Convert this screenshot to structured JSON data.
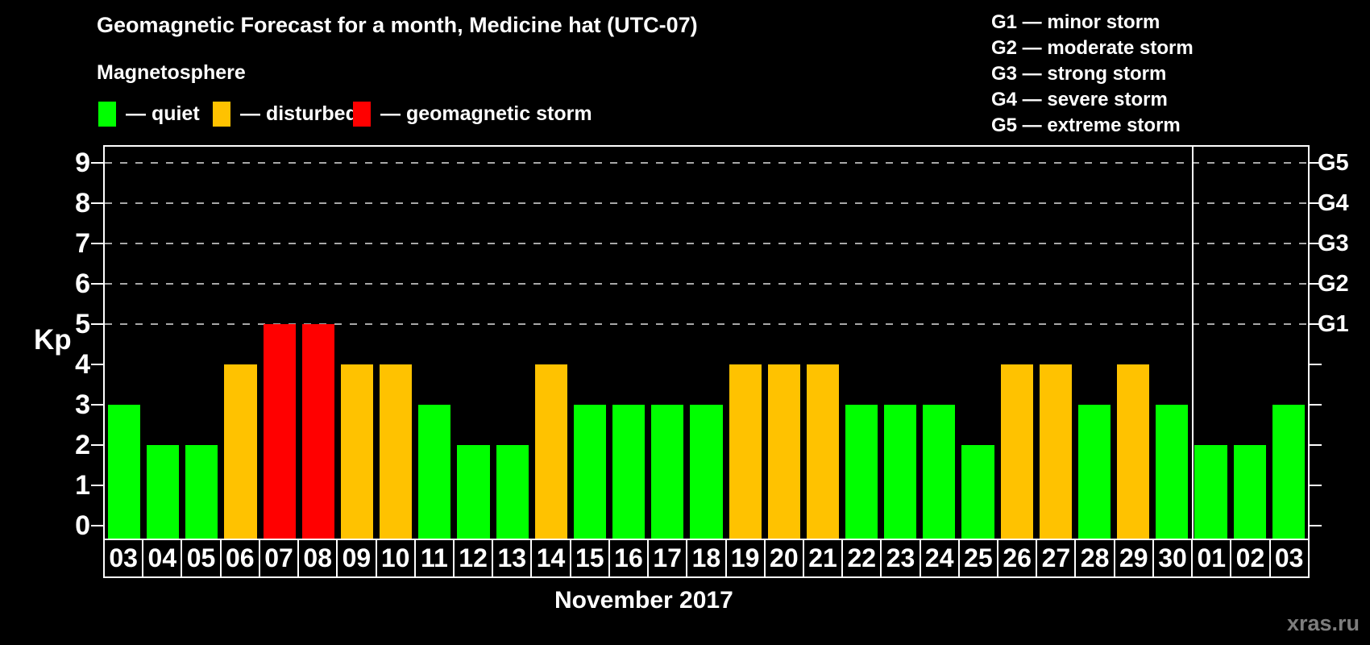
{
  "title": "Geomagnetic Forecast for a month, Medicine hat (UTC-07)",
  "subtitle": "Magnetosphere",
  "magnetosphere_legend": [
    {
      "state": "quiet",
      "label": "— quiet",
      "color": "#00ff00"
    },
    {
      "state": "disturbed",
      "label": "— disturbed",
      "color": "#ffc200"
    },
    {
      "state": "storm",
      "label": "— geomagnetic storm",
      "color": "#ff0000"
    }
  ],
  "storm_scale_legend": [
    "G1 — minor storm",
    "G2 — moderate storm",
    "G3 — strong storm",
    "G4 — severe storm",
    "G5 — extreme storm"
  ],
  "watermark": "xras.ru",
  "chart_data": {
    "type": "bar",
    "title": "Geomagnetic Forecast for a month, Medicine hat (UTC-07)",
    "xlabel": "November 2017",
    "ylabel": "Kp",
    "ylim": [
      0,
      9.4
    ],
    "grid": "dashed horizontal lines at Kp 5-9",
    "legend_position": "top",
    "categories": [
      "03",
      "04",
      "05",
      "06",
      "07",
      "08",
      "09",
      "10",
      "11",
      "12",
      "13",
      "14",
      "15",
      "16",
      "17",
      "18",
      "19",
      "20",
      "21",
      "22",
      "23",
      "24",
      "25",
      "26",
      "27",
      "28",
      "29",
      "30",
      "01",
      "02",
      "03"
    ],
    "values": [
      3,
      2,
      2,
      4,
      5,
      5,
      4,
      4,
      3,
      2,
      2,
      4,
      3,
      3,
      3,
      3,
      4,
      4,
      4,
      3,
      3,
      3,
      2,
      4,
      4,
      3,
      4,
      3,
      2,
      2,
      3
    ],
    "states": [
      "quiet",
      "quiet",
      "quiet",
      "disturbed",
      "storm",
      "storm",
      "disturbed",
      "disturbed",
      "quiet",
      "quiet",
      "quiet",
      "disturbed",
      "quiet",
      "quiet",
      "quiet",
      "quiet",
      "disturbed",
      "disturbed",
      "disturbed",
      "quiet",
      "quiet",
      "quiet",
      "quiet",
      "disturbed",
      "disturbed",
      "quiet",
      "disturbed",
      "quiet",
      "quiet",
      "quiet",
      "quiet"
    ],
    "state_colors": {
      "quiet": "#00ff00",
      "disturbed": "#ffc200",
      "storm": "#ff0000"
    },
    "left_ticks": [
      0,
      1,
      2,
      3,
      4,
      5,
      6,
      7,
      8,
      9
    ],
    "right_ticks": [
      {
        "kp": 5,
        "label": "G1"
      },
      {
        "kp": 6,
        "label": "G2"
      },
      {
        "kp": 7,
        "label": "G3"
      },
      {
        "kp": 8,
        "label": "G4"
      },
      {
        "kp": 9,
        "label": "G5"
      }
    ],
    "gridlines_at": [
      5,
      6,
      7,
      8,
      9
    ],
    "month_separator_after_index": 27
  }
}
